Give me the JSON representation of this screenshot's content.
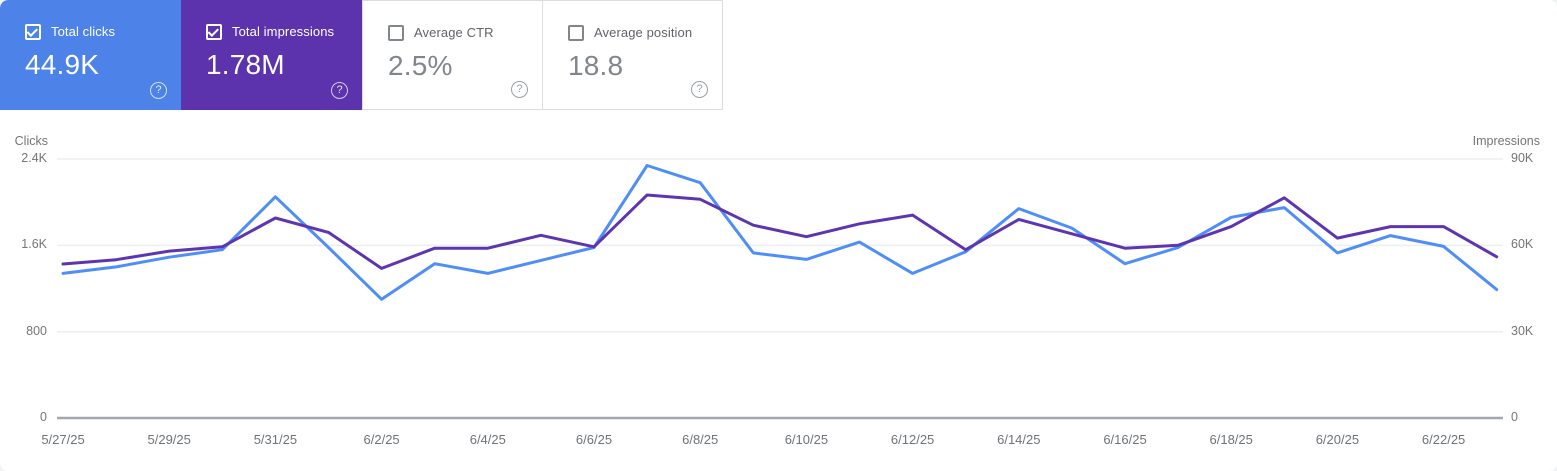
{
  "cards": [
    {
      "label": "Total clicks",
      "value": "44.9K",
      "checked": true,
      "bg": "#4d82e8",
      "fg": "#ffffff"
    },
    {
      "label": "Total impressions",
      "value": "1.78M",
      "checked": true,
      "bg": "#5c33ad",
      "fg": "#ffffff"
    },
    {
      "label": "Average CTR",
      "value": "2.5%",
      "checked": false,
      "bg": "#ffffff",
      "fg": "#80868b"
    },
    {
      "label": "Average position",
      "value": "18.8",
      "checked": false,
      "bg": "#ffffff",
      "fg": "#80868b"
    }
  ],
  "icons": {
    "help": "?"
  },
  "chart_data": {
    "type": "line",
    "x": [
      "5/27/25",
      "5/28/25",
      "5/29/25",
      "5/30/25",
      "5/31/25",
      "6/1/25",
      "6/2/25",
      "6/3/25",
      "6/4/25",
      "6/5/25",
      "6/6/25",
      "6/7/25",
      "6/8/25",
      "6/9/25",
      "6/10/25",
      "6/11/25",
      "6/12/25",
      "6/13/25",
      "6/14/25",
      "6/15/25",
      "6/16/25",
      "6/17/25",
      "6/18/25",
      "6/19/25",
      "6/20/25",
      "6/21/25",
      "6/22/25",
      "6/23/25"
    ],
    "x_tick_every": 2,
    "series": [
      {
        "name": "Clicks",
        "axis": "left",
        "color": "#4f8ef7",
        "values": [
          1340,
          1400,
          1490,
          1560,
          2050,
          1580,
          1100,
          1430,
          1340,
          1460,
          1580,
          2340,
          2180,
          1530,
          1470,
          1630,
          1340,
          1540,
          1940,
          1760,
          1430,
          1580,
          1860,
          1950,
          1530,
          1690,
          1590,
          1190
        ]
      },
      {
        "name": "Impressions",
        "axis": "right",
        "color": "#5e35b1",
        "values": [
          53500,
          55000,
          58000,
          59500,
          69500,
          64500,
          52000,
          59000,
          59000,
          63500,
          59500,
          77500,
          76000,
          67000,
          63000,
          67500,
          70500,
          58500,
          69000,
          64000,
          59000,
          60000,
          66500,
          76500,
          62500,
          66500,
          66500,
          56000
        ]
      }
    ],
    "left_axis": {
      "title": "Clicks",
      "max": 2400,
      "ticks": [
        {
          "v": 0,
          "label": "0"
        },
        {
          "v": 800,
          "label": "800"
        },
        {
          "v": 1600,
          "label": "1.6K"
        },
        {
          "v": 2400,
          "label": "2.4K"
        }
      ]
    },
    "right_axis": {
      "title": "Impressions",
      "max": 90000,
      "ticks": [
        {
          "v": 0,
          "label": "0"
        },
        {
          "v": 30000,
          "label": "30K"
        },
        {
          "v": 60000,
          "label": "60K"
        },
        {
          "v": 90000,
          "label": "90K"
        }
      ]
    },
    "grid": "horizontal",
    "legend": "none"
  }
}
